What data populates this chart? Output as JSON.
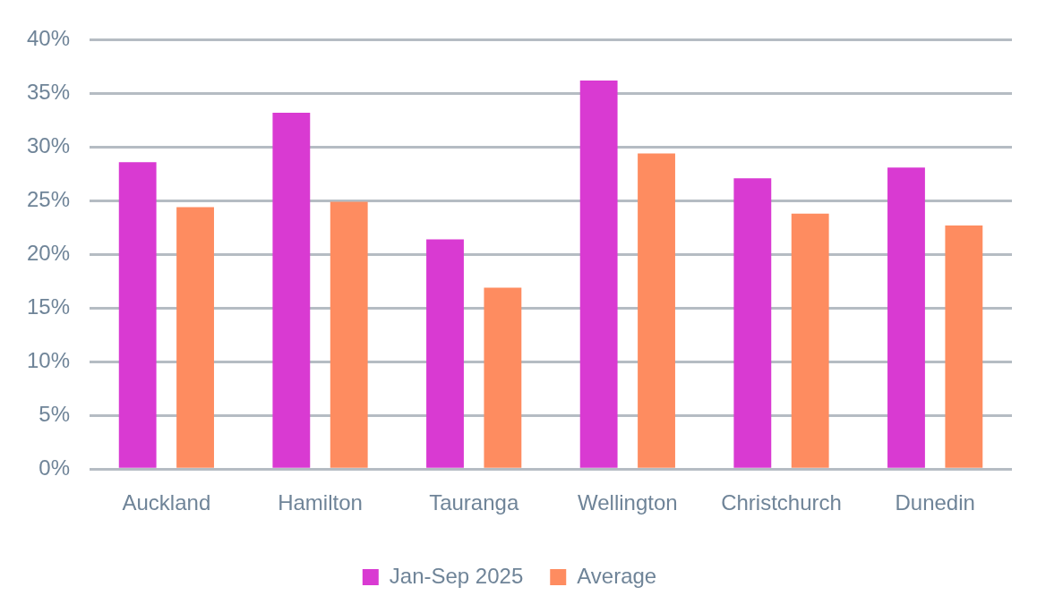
{
  "chart_data": {
    "type": "bar",
    "categories": [
      "Auckland",
      "Hamilton",
      "Tauranga",
      "Wellington",
      "Christchurch",
      "Dunedin"
    ],
    "series": [
      {
        "name": "Jan-Sep 2025",
        "color": "#d93ad2",
        "values": [
          28.6,
          33.2,
          21.4,
          36.2,
          27.1,
          28.1
        ]
      },
      {
        "name": "Average",
        "color": "#fe8c60",
        "values": [
          24.4,
          24.9,
          16.9,
          29.4,
          23.8,
          22.7
        ]
      }
    ],
    "ylim": [
      0,
      40
    ],
    "yticks": [
      {
        "value": 0,
        "label": "0%"
      },
      {
        "value": 5,
        "label": "5%"
      },
      {
        "value": 10,
        "label": "10%"
      },
      {
        "value": 15,
        "label": "15%"
      },
      {
        "value": 20,
        "label": "20%"
      },
      {
        "value": 25,
        "label": "25%"
      },
      {
        "value": 30,
        "label": "30%"
      },
      {
        "value": 35,
        "label": "35%"
      },
      {
        "value": 40,
        "label": "40%"
      }
    ],
    "grid": "y",
    "legend": "bottom"
  }
}
